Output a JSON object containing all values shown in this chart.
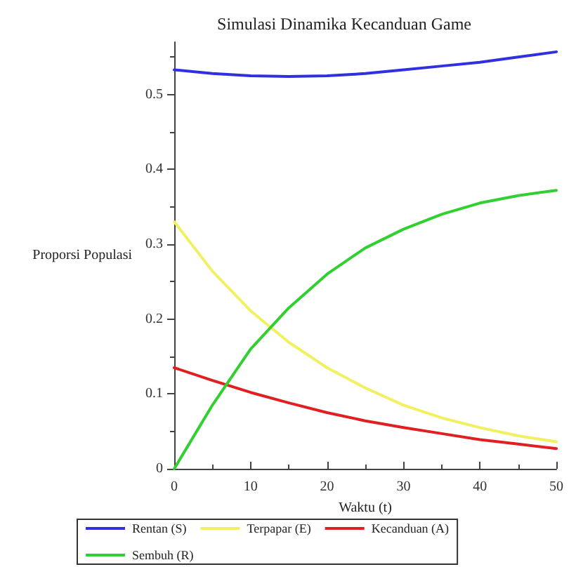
{
  "chart_data": {
    "type": "line",
    "title": "Simulasi Dinamika Kecanduan Game",
    "xlabel": "Waktu (t)",
    "ylabel": "Proporsi Populasi",
    "x": [
      0,
      5,
      10,
      15,
      20,
      25,
      30,
      35,
      40,
      45,
      50
    ],
    "series": [
      {
        "name": "Rentan (S)",
        "color": "#3030e0",
        "values": [
          0.533,
          0.528,
          0.525,
          0.524,
          0.525,
          0.528,
          0.533,
          0.538,
          0.543,
          0.55,
          0.557
        ]
      },
      {
        "name": "Terpapar (E)",
        "color": "#f0f060",
        "values": [
          0.33,
          0.264,
          0.211,
          0.169,
          0.135,
          0.108,
          0.085,
          0.068,
          0.055,
          0.044,
          0.036
        ]
      },
      {
        "name": "Kecanduan (A)",
        "color": "#e02020",
        "values": [
          0.135,
          0.118,
          0.102,
          0.088,
          0.075,
          0.064,
          0.055,
          0.047,
          0.039,
          0.033,
          0.027
        ]
      },
      {
        "name": "Sembuh (R)",
        "color": "#30d030",
        "values": [
          0,
          0.085,
          0.16,
          0.215,
          0.26,
          0.295,
          0.32,
          0.34,
          0.355,
          0.365,
          0.372
        ]
      }
    ],
    "xlim": [
      0,
      50
    ],
    "xticks": [
      0,
      10,
      20,
      30,
      40,
      50
    ],
    "ylim": [
      0,
      0.57
    ],
    "yticks": [
      0,
      0.1,
      0.2,
      0.3,
      0.4,
      0.5
    ],
    "grid": false,
    "legend": "bottom",
    "marker": "none",
    "line_style": "solid"
  }
}
